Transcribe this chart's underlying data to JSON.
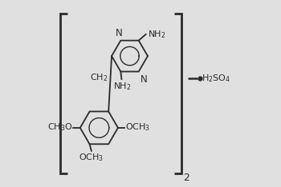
{
  "bg_color": "#e0e0e0",
  "line_color": "#2a2a2a",
  "text_color": "#2a2a2a",
  "fig_width": 3.5,
  "fig_height": 2.34,
  "dpi": 100,
  "pcx": 0.44,
  "pcy": 0.7,
  "pr": 0.1,
  "pr_inner": 0.052,
  "bcx": 0.27,
  "bcy": 0.3,
  "br": 0.105,
  "br_inner": 0.055
}
